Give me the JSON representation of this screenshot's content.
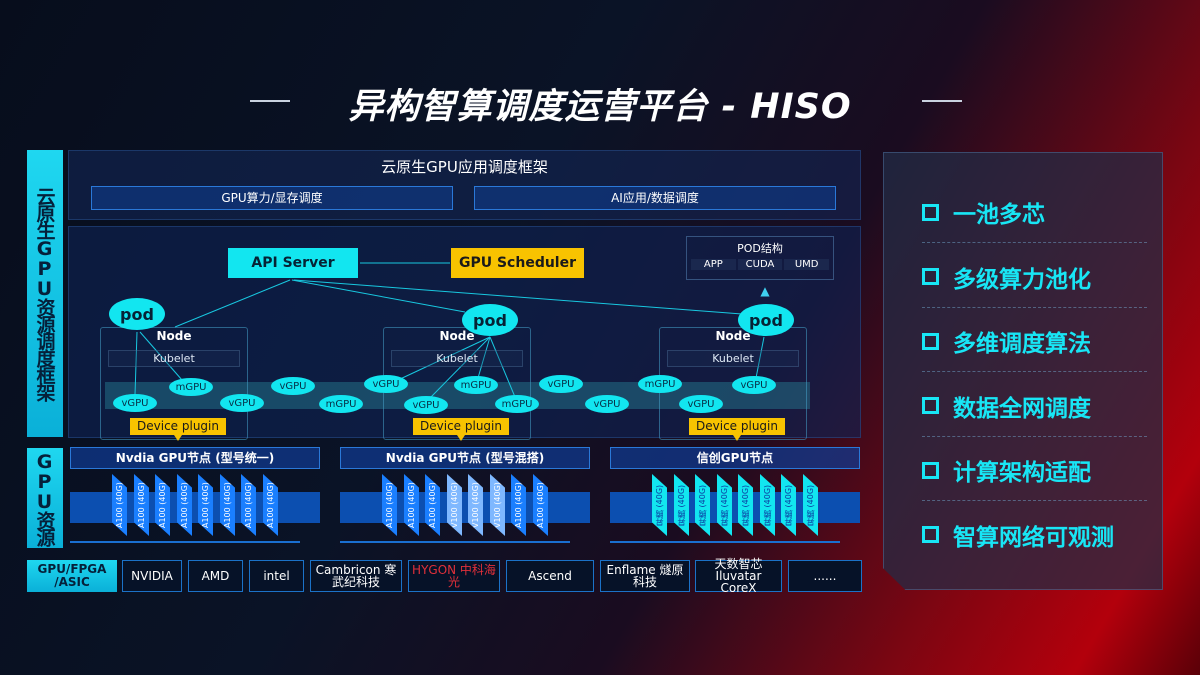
{
  "title": "异构智算调度运营平台 - HISO",
  "left_labels": {
    "framework": "云原生GPU资源调度框架",
    "gpu": "GPU资源",
    "hw": "GPU/FPGA /ASIC"
  },
  "top": {
    "title": "云原生GPU应用调度框架",
    "box1": "GPU算力/显存调度",
    "box2": "AI应用/数据调度"
  },
  "diagram": {
    "api_server": "API Server",
    "gpu_scheduler": "GPU Scheduler",
    "pod_struct": {
      "title": "POD结构",
      "items": [
        "APP",
        "CUDA",
        "UMD"
      ]
    },
    "pod": "pod",
    "node": "Node",
    "kubelet": "Kubelet",
    "device_plugin": "Device plugin",
    "units": [
      "vGPU",
      "mGPU",
      "vGPU",
      "vGPU",
      "mGPU",
      "vGPU",
      "vGPU",
      "mGPU",
      "mGPU",
      "vGPU",
      "vGPU",
      "mGPU",
      "vGPU",
      "vGPU"
    ]
  },
  "gpu_nodes": [
    {
      "title": "Nvdia GPU节点 (型号统一)",
      "cards": [
        "A100 (40G)",
        "A100 (40G)",
        "A100 (40G)",
        "A100 (40G)",
        "A100 (40G)",
        "A100 (40G)",
        "A100 (40G)",
        "A100 (40G)"
      ]
    },
    {
      "title": "Nvdia GPU节点 (型号混搭)",
      "cards": [
        "A100 (40G)",
        "A100 (40G)",
        "A100 (40G)",
        "V100 (40G)",
        "V100 (40G)",
        "V100 (40G)",
        "A100 (40G)",
        "A100 (40G)"
      ]
    },
    {
      "title": "信创GPU节点",
      "cards": [
        "昇腾 (40G)",
        "昇腾 (40G)",
        "昇腾 (40G)",
        "昇腾 (40G)",
        "昇腾 (40G)",
        "昇腾 (40G)",
        "昇腾 (40G)",
        "昇腾 (40G)"
      ]
    }
  ],
  "vendors": [
    "NVIDIA",
    "AMD",
    "intel",
    "Cambricon 寒武纪科技",
    "HYGON 中科海光",
    "Ascend",
    "Enflame 燧原科技",
    "天数智芯 Iluvatar CoreX",
    "......"
  ],
  "features": [
    "一池多芯",
    "多级算力池化",
    "多维调度算法",
    "数据全网调度",
    "计算架构适配",
    "智算网络可观测"
  ],
  "colors": {
    "cyan": "#12e6f0",
    "yellow": "#f8c300",
    "blue": "#1a7fff",
    "light_card": "#7fb8ff"
  }
}
